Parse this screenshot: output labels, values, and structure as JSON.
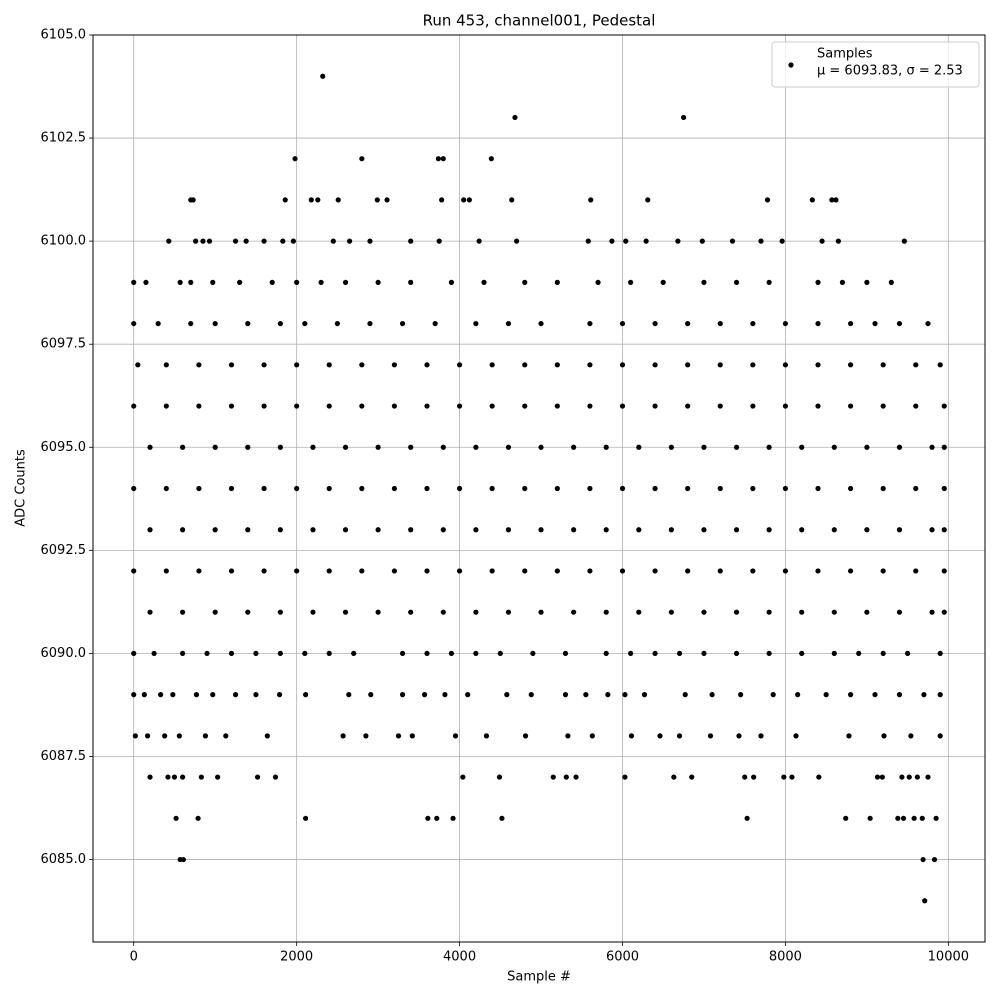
{
  "chart_data": {
    "type": "scatter",
    "title": "Run 453, channel001, Pedestal",
    "x_label": "Sample #",
    "y_label": "ADC Counts",
    "xlim": [
      -500,
      10450
    ],
    "ylim": [
      6083,
      6105
    ],
    "xticks": [
      0,
      2000,
      4000,
      6000,
      8000,
      10000
    ],
    "yticks": [
      {
        "value": 6085,
        "label": "6085.0"
      },
      {
        "value": 6087.5,
        "label": "6087.5"
      },
      {
        "value": 6090,
        "label": "6090.0"
      },
      {
        "value": 6092.5,
        "label": "6092.5"
      },
      {
        "value": 6095,
        "label": "6095.0"
      },
      {
        "value": 6097.5,
        "label": "6097.5"
      },
      {
        "value": 6100,
        "label": "6100.0"
      },
      {
        "value": 6102.5,
        "label": "6102.5"
      },
      {
        "value": 6105,
        "label": "6105.0"
      }
    ],
    "grid": true,
    "legend": "upper right",
    "legend_note": "μ = 6093.83, σ = 2.53",
    "series": [
      {
        "name": "Samples",
        "color": "#000000",
        "x": [
          2320,
          4680,
          6750,
          1980,
          2800,
          3740,
          3800,
          4390,
          700,
          730,
          1860,
          2180,
          2260,
          2510,
          2990,
          3110,
          3780,
          4050,
          4120,
          4640,
          5610,
          6310,
          7780,
          8330,
          8570,
          8620,
          430,
          760,
          850,
          930,
          1250,
          1380,
          1600,
          1830,
          1960,
          2450,
          2650,
          2900,
          3400,
          3750,
          4240,
          4700,
          5580,
          5870,
          6040,
          6290,
          6680,
          6980,
          7350,
          7700,
          7960,
          8450,
          8650,
          9460,
          0,
          150,
          570,
          700,
          970,
          1300,
          1700,
          2000,
          2300,
          2600,
          3000,
          3400,
          3900,
          4300,
          4800,
          5200,
          5700,
          6100,
          6500,
          7000,
          7400,
          7800,
          8400,
          8700,
          9000,
          9300,
          0,
          300,
          700,
          1000,
          1400,
          1800,
          2100,
          2500,
          2900,
          3300,
          3700,
          4200,
          4600,
          5000,
          5600,
          6000,
          6400,
          6800,
          7200,
          7600,
          8000,
          8400,
          8800,
          9100,
          9400,
          9750,
          50,
          400,
          800,
          1200,
          1600,
          2000,
          2400,
          2800,
          3200,
          3600,
          4000,
          4400,
          4800,
          5200,
          5600,
          6000,
          6400,
          6800,
          7200,
          7600,
          8000,
          8400,
          8800,
          9200,
          9600,
          9900,
          0,
          400,
          800,
          1200,
          1600,
          2000,
          2400,
          2800,
          3200,
          3600,
          4000,
          4400,
          4800,
          5200,
          5600,
          6000,
          6400,
          6800,
          7200,
          7600,
          8000,
          8400,
          8800,
          9200,
          9600,
          9950,
          200,
          600,
          1000,
          1400,
          1800,
          2200,
          2600,
          3000,
          3400,
          3800,
          4200,
          4600,
          5000,
          5400,
          5800,
          6200,
          6600,
          7000,
          7400,
          7800,
          8200,
          8600,
          9000,
          9400,
          9800,
          9950,
          0,
          400,
          800,
          1200,
          1600,
          2000,
          2400,
          2800,
          3200,
          3600,
          4000,
          4400,
          4800,
          5200,
          5600,
          6000,
          6400,
          6800,
          7200,
          7600,
          8000,
          8400,
          8800,
          9200,
          9600,
          9950,
          200,
          600,
          1000,
          1400,
          1800,
          2200,
          2600,
          3000,
          3400,
          3800,
          4200,
          4600,
          5000,
          5400,
          5800,
          6200,
          6600,
          7000,
          7400,
          7800,
          8200,
          8600,
          9000,
          9400,
          9800,
          9950,
          0,
          400,
          800,
          1200,
          1600,
          2000,
          2400,
          2800,
          3200,
          3600,
          4000,
          4400,
          4800,
          5200,
          5600,
          6000,
          6400,
          6800,
          7200,
          7600,
          8000,
          8400,
          8800,
          9200,
          9600,
          9950,
          200,
          600,
          1000,
          1400,
          1800,
          2200,
          2600,
          3000,
          3400,
          3800,
          4200,
          4600,
          5000,
          5400,
          5800,
          6200,
          6600,
          7000,
          7400,
          7800,
          8200,
          8600,
          9000,
          9400,
          9800,
          9950,
          0,
          250,
          600,
          900,
          1200,
          1500,
          1800,
          2100,
          2400,
          2700,
          3300,
          3600,
          3900,
          4200,
          4500,
          4900,
          5300,
          5800,
          6100,
          6400,
          6700,
          7000,
          7400,
          7800,
          8200,
          8600,
          8900,
          9200,
          9500,
          9900,
          0,
          130,
          330,
          480,
          770,
          970,
          1250,
          1500,
          1790,
          2110,
          2640,
          2910,
          3300,
          3570,
          3820,
          4100,
          4580,
          4880,
          5300,
          5550,
          5820,
          6030,
          6270,
          6770,
          7100,
          7450,
          7850,
          8150,
          8500,
          8800,
          9100,
          9400,
          9700,
          9900,
          20,
          170,
          380,
          560,
          880,
          1130,
          1640,
          2570,
          2850,
          3250,
          3420,
          3950,
          4330,
          4810,
          5330,
          5630,
          6110,
          6460,
          6700,
          7080,
          7430,
          7700,
          8130,
          8780,
          9210,
          9540,
          9900,
          200,
          420,
          500,
          600,
          830,
          1030,
          1520,
          1740,
          4040,
          4490,
          5150,
          5310,
          5430,
          6030,
          6630,
          6850,
          7500,
          7610,
          7980,
          8080,
          8410,
          9130,
          9190,
          9430,
          9520,
          9620,
          9750,
          520,
          790,
          2110,
          3610,
          3720,
          3920,
          4520,
          7530,
          8740,
          9040,
          9380,
          9450,
          9580,
          9680,
          9850,
          570,
          610,
          9690,
          9830,
          9710
        ],
        "values": [
          6104,
          6103,
          6103,
          6102,
          6102,
          6102,
          6102,
          6102,
          6101,
          6101,
          6101,
          6101,
          6101,
          6101,
          6101,
          6101,
          6101,
          6101,
          6101,
          6101,
          6101,
          6101,
          6101,
          6101,
          6101,
          6101,
          6100,
          6100,
          6100,
          6100,
          6100,
          6100,
          6100,
          6100,
          6100,
          6100,
          6100,
          6100,
          6100,
          6100,
          6100,
          6100,
          6100,
          6100,
          6100,
          6100,
          6100,
          6100,
          6100,
          6100,
          6100,
          6100,
          6100,
          6100,
          6099,
          6099,
          6099,
          6099,
          6099,
          6099,
          6099,
          6099,
          6099,
          6099,
          6099,
          6099,
          6099,
          6099,
          6099,
          6099,
          6099,
          6099,
          6099,
          6099,
          6099,
          6099,
          6099,
          6099,
          6099,
          6099,
          6098,
          6098,
          6098,
          6098,
          6098,
          6098,
          6098,
          6098,
          6098,
          6098,
          6098,
          6098,
          6098,
          6098,
          6098,
          6098,
          6098,
          6098,
          6098,
          6098,
          6098,
          6098,
          6098,
          6098,
          6098,
          6098,
          6097,
          6097,
          6097,
          6097,
          6097,
          6097,
          6097,
          6097,
          6097,
          6097,
          6097,
          6097,
          6097,
          6097,
          6097,
          6097,
          6097,
          6097,
          6097,
          6097,
          6097,
          6097,
          6097,
          6097,
          6097,
          6097,
          6096,
          6096,
          6096,
          6096,
          6096,
          6096,
          6096,
          6096,
          6096,
          6096,
          6096,
          6096,
          6096,
          6096,
          6096,
          6096,
          6096,
          6096,
          6096,
          6096,
          6096,
          6096,
          6096,
          6096,
          6096,
          6096,
          6095,
          6095,
          6095,
          6095,
          6095,
          6095,
          6095,
          6095,
          6095,
          6095,
          6095,
          6095,
          6095,
          6095,
          6095,
          6095,
          6095,
          6095,
          6095,
          6095,
          6095,
          6095,
          6095,
          6095,
          6095,
          6095,
          6094,
          6094,
          6094,
          6094,
          6094,
          6094,
          6094,
          6094,
          6094,
          6094,
          6094,
          6094,
          6094,
          6094,
          6094,
          6094,
          6094,
          6094,
          6094,
          6094,
          6094,
          6094,
          6094,
          6094,
          6094,
          6094,
          6093,
          6093,
          6093,
          6093,
          6093,
          6093,
          6093,
          6093,
          6093,
          6093,
          6093,
          6093,
          6093,
          6093,
          6093,
          6093,
          6093,
          6093,
          6093,
          6093,
          6093,
          6093,
          6093,
          6093,
          6093,
          6093,
          6092,
          6092,
          6092,
          6092,
          6092,
          6092,
          6092,
          6092,
          6092,
          6092,
          6092,
          6092,
          6092,
          6092,
          6092,
          6092,
          6092,
          6092,
          6092,
          6092,
          6092,
          6092,
          6092,
          6092,
          6092,
          6092,
          6091,
          6091,
          6091,
          6091,
          6091,
          6091,
          6091,
          6091,
          6091,
          6091,
          6091,
          6091,
          6091,
          6091,
          6091,
          6091,
          6091,
          6091,
          6091,
          6091,
          6091,
          6091,
          6091,
          6091,
          6091,
          6091,
          6090,
          6090,
          6090,
          6090,
          6090,
          6090,
          6090,
          6090,
          6090,
          6090,
          6090,
          6090,
          6090,
          6090,
          6090,
          6090,
          6090,
          6090,
          6090,
          6090,
          6090,
          6090,
          6090,
          6090,
          6090,
          6090,
          6090,
          6090,
          6090,
          6090,
          6089,
          6089,
          6089,
          6089,
          6089,
          6089,
          6089,
          6089,
          6089,
          6089,
          6089,
          6089,
          6089,
          6089,
          6089,
          6089,
          6089,
          6089,
          6089,
          6089,
          6089,
          6089,
          6089,
          6089,
          6089,
          6089,
          6089,
          6089,
          6089,
          6089,
          6089,
          6089,
          6089,
          6089,
          6088,
          6088,
          6088,
          6088,
          6088,
          6088,
          6088,
          6088,
          6088,
          6088,
          6088,
          6088,
          6088,
          6088,
          6088,
          6088,
          6088,
          6088,
          6088,
          6088,
          6088,
          6088,
          6088,
          6088,
          6088,
          6088,
          6088,
          6087,
          6087,
          6087,
          6087,
          6087,
          6087,
          6087,
          6087,
          6087,
          6087,
          6087,
          6087,
          6087,
          6087,
          6087,
          6087,
          6087,
          6087,
          6087,
          6087,
          6087,
          6087,
          6087,
          6087,
          6087,
          6087,
          6087,
          6086,
          6086,
          6086,
          6086,
          6086,
          6086,
          6086,
          6086,
          6086,
          6086,
          6086,
          6086,
          6086,
          6086,
          6086,
          6085,
          6085,
          6085,
          6085,
          6084
        ]
      }
    ]
  }
}
